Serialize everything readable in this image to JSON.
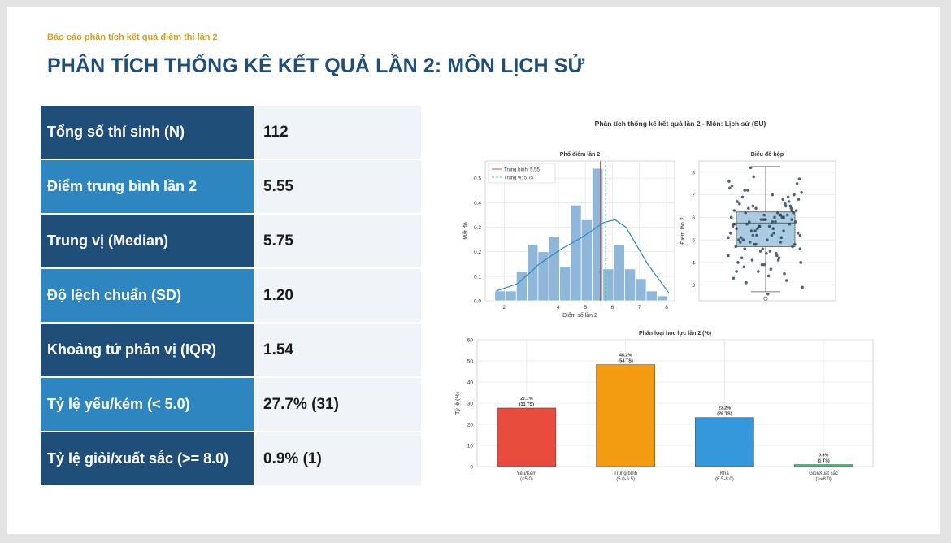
{
  "header": {
    "subtitle": "Báo cáo phân tích kết quả điểm thi lần 2",
    "title": "PHÂN TÍCH THỐNG KÊ KẾT QUẢ LẦN 2: MÔN LỊCH SỬ"
  },
  "stats": [
    {
      "label": "Tổng số thí sinh (N)",
      "value": "112"
    },
    {
      "label": "Điểm trung bình lần 2",
      "value": "5.55"
    },
    {
      "label": "Trung vị (Median)",
      "value": "5.75"
    },
    {
      "label": "Độ lệch chuẩn (SD)",
      "value": "1.20"
    },
    {
      "label": "Khoảng tứ phân vị (IQR)",
      "value": "1.54"
    },
    {
      "label": "Tỷ lệ yếu/kém (< 5.0)",
      "value": "27.7% (31)"
    },
    {
      "label": "Tỷ lệ giỏi/xuất sắc (>= 8.0)",
      "value": "0.9% (1)"
    }
  ],
  "colors": {
    "dark_navy": "#1f4e79",
    "mid_blue": "#2e86c1",
    "gold": "#d4a017"
  },
  "figure_title": "Phân tích thống kê kết quả lần 2 - Môn: Lịch sử (SU)",
  "chart_data": [
    {
      "type": "bar",
      "title": "Phổ điểm lần 2",
      "xlabel": "Điểm số lần 2",
      "ylabel": "Mật độ",
      "xlim": [
        1.3,
        8.3
      ],
      "ylim": [
        0,
        0.57
      ],
      "xticks": [
        "2",
        "4",
        "5",
        "6",
        "7",
        "8"
      ],
      "yticks": [
        "0.0",
        "0.1",
        "0.2",
        "0.3",
        "0.4",
        "0.5"
      ],
      "bin_edges": [
        1.65,
        2.05,
        2.45,
        2.85,
        3.25,
        3.65,
        4.05,
        4.45,
        4.85,
        5.25,
        5.65,
        6.05,
        6.45,
        6.85,
        7.25,
        7.65,
        8.05
      ],
      "density": [
        0.04,
        0.04,
        0.12,
        0.23,
        0.2,
        0.26,
        0.14,
        0.39,
        0.33,
        0.54,
        0.13,
        0.23,
        0.13,
        0.09,
        0.04,
        0.02
      ],
      "kde": {
        "x": [
          1.7,
          2.5,
          3.3,
          4.1,
          4.9,
          5.7,
          6.1,
          6.5,
          7.3,
          8.1
        ],
        "y": [
          0.04,
          0.07,
          0.15,
          0.21,
          0.26,
          0.32,
          0.33,
          0.3,
          0.15,
          0.03
        ]
      },
      "mean_line": 5.55,
      "median_line": 5.75,
      "legend": [
        "Trung bình: 5.55",
        "Trung vị: 5.75"
      ],
      "legend_position": "top-left",
      "grid": true
    },
    {
      "type": "box",
      "title": "Biểu đồ hộp",
      "ylabel": "Điểm lần 2",
      "ylim": [
        2.3,
        8.5
      ],
      "yticks": [
        "3",
        "4",
        "5",
        "6",
        "7",
        "8"
      ],
      "q1": 4.7,
      "median": 5.75,
      "q3": 6.24,
      "whisker_low": 2.7,
      "whisker_high": 8.25,
      "outliers": [
        2.4
      ],
      "points": [
        5.1,
        4.8,
        6.0,
        5.5,
        3.9,
        6.3,
        7.2,
        5.8,
        4.6,
        5.2,
        6.1,
        3.3,
        5.9,
        6.7,
        4.2,
        5.6,
        7.5,
        4.9,
        6.2,
        5.3,
        3.6,
        6.5,
        5.0,
        4.4,
        7.0,
        5.7,
        6.0,
        2.9,
        5.4,
        6.8,
        4.7,
        5.9,
        6.4,
        3.8,
        5.2,
        7.7,
        4.1,
        6.1,
        5.6,
        4.5,
        6.9,
        5.1,
        3.4,
        6.3,
        5.8,
        4.3,
        7.3,
        5.5,
        6.6,
        4.0,
        5.9,
        6.2,
        3.1,
        5.3,
        7.1,
        4.8,
        6.0,
        5.7,
        4.6,
        6.5,
        5.0,
        3.7,
        6.8,
        5.4,
        4.2,
        7.4,
        5.6,
        6.1,
        4.9,
        2.6,
        5.8,
        6.4,
        4.4,
        7.6,
        5.2,
        3.5,
        6.7,
        5.9,
        4.7,
        6.2,
        5.5,
        4.0,
        7.8,
        5.1,
        6.3,
        3.9,
        5.7,
        6.9,
        4.5,
        5.3,
        8.2,
        4.1,
        6.0,
        5.6,
        3.2,
        6.6,
        5.0,
        4.8,
        7.2,
        5.8,
        4.3,
        6.4,
        5.4,
        3.6,
        6.1,
        5.9,
        4.6,
        7.0,
        5.2,
        6.5,
        4.9,
        5.7
      ],
      "grid": true
    },
    {
      "type": "bar",
      "title": "Phân loại học lực lần 2 (%)",
      "ylabel": "Tỷ lệ (%)",
      "ylim": [
        0,
        60
      ],
      "yticks": [
        "0",
        "10",
        "20",
        "30",
        "40",
        "50",
        "60"
      ],
      "categories": [
        "Yếu/Kém\n(<5.0)",
        "Trung bình\n(5.0-6.5)",
        "Khá\n(6.5-8.0)",
        "Giỏi/Xuất sắc\n(>=8.0)"
      ],
      "values": [
        27.7,
        48.2,
        23.2,
        0.9
      ],
      "data_labels": [
        "27.7%\n(31 TS)",
        "48.2%\n(54 TS)",
        "23.2%\n(26 TS)",
        "0.9%\n(1 TS)"
      ],
      "colors": [
        "#e74c3c",
        "#f39c12",
        "#3498db",
        "#2ecc71"
      ],
      "grid": true
    }
  ]
}
